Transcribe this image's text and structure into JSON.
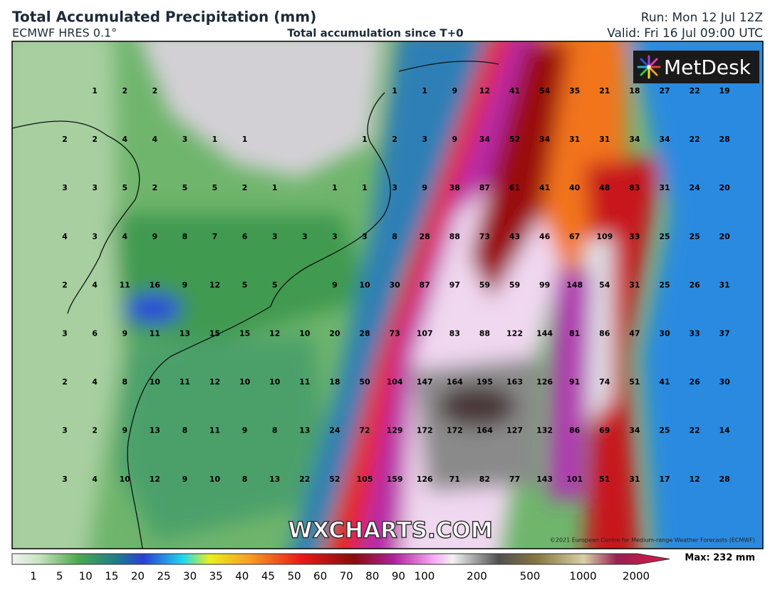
{
  "header": {
    "title": "Total Accumulated Precipitation (mm)",
    "model": "ECMWF HRES 0.1°",
    "subtitle": "Total accumulation since T+0",
    "run": "Run: Mon 12 Jul 12Z",
    "valid": "Valid: Fri 16 Jul 09:00 UTC"
  },
  "logo": "MetDesk",
  "watermark": "WXCHARTS.COM",
  "copyright": "©2021 European Centre for Medium-range Weather Forecasts (ECMWF)",
  "grid": {
    "rows": [
      [
        null,
        1,
        2,
        2,
        null,
        null,
        null,
        null,
        null,
        null,
        null,
        1,
        1,
        9,
        12,
        41,
        54,
        35,
        21,
        18,
        27,
        22,
        19
      ],
      [
        2,
        2,
        4,
        4,
        3,
        1,
        1,
        null,
        null,
        null,
        1,
        2,
        3,
        9,
        34,
        52,
        34,
        31,
        31,
        34,
        34,
        22,
        28
      ],
      [
        3,
        3,
        5,
        2,
        5,
        5,
        2,
        1,
        null,
        1,
        1,
        3,
        9,
        38,
        87,
        61,
        41,
        40,
        48,
        83,
        31,
        24,
        20
      ],
      [
        4,
        3,
        4,
        9,
        8,
        7,
        6,
        3,
        3,
        3,
        3,
        8,
        28,
        88,
        73,
        43,
        46,
        67,
        109,
        33,
        25,
        25,
        20
      ],
      [
        2,
        4,
        11,
        16,
        9,
        12,
        5,
        5,
        null,
        9,
        10,
        30,
        87,
        97,
        59,
        59,
        99,
        148,
        54,
        31,
        25,
        26,
        31
      ],
      [
        3,
        6,
        9,
        11,
        13,
        15,
        15,
        12,
        10,
        20,
        28,
        73,
        107,
        83,
        88,
        122,
        144,
        81,
        86,
        47,
        30,
        33,
        37
      ],
      [
        2,
        4,
        8,
        10,
        11,
        12,
        10,
        10,
        11,
        18,
        50,
        104,
        147,
        164,
        195,
        163,
        126,
        91,
        74,
        51,
        41,
        26,
        30
      ],
      [
        3,
        2,
        9,
        13,
        8,
        11,
        9,
        8,
        13,
        24,
        72,
        129,
        172,
        172,
        164,
        127,
        132,
        86,
        69,
        34,
        25,
        22,
        14
      ],
      [
        3,
        4,
        10,
        12,
        9,
        10,
        8,
        13,
        22,
        52,
        105,
        159,
        126,
        71,
        82,
        77,
        143,
        101,
        51,
        31,
        17,
        12,
        28
      ]
    ]
  },
  "colorbar": {
    "ticks": [
      1,
      5,
      10,
      15,
      20,
      25,
      30,
      35,
      40,
      45,
      50,
      60,
      70,
      80,
      90,
      100,
      200,
      500,
      1000,
      2000
    ],
    "max_label": "Max: 232 mm"
  }
}
